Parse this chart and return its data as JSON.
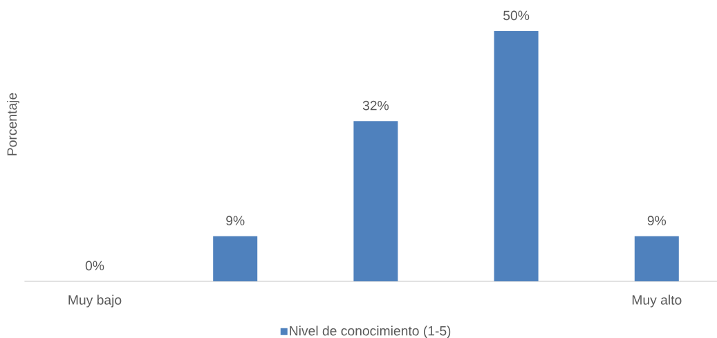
{
  "chart_data": {
    "type": "bar",
    "ylabel": "Porcentaje",
    "categories": [
      "Muy bajo",
      null,
      null,
      null,
      "Muy alto"
    ],
    "series": [
      {
        "name": "Nivel de conocimiento (1-5)",
        "color": "#4f81bd",
        "values": [
          0,
          9,
          32,
          50,
          9
        ],
        "value_labels": [
          "0%",
          "9%",
          "32%",
          "50%",
          "9%"
        ]
      }
    ],
    "legend": "bottom"
  }
}
